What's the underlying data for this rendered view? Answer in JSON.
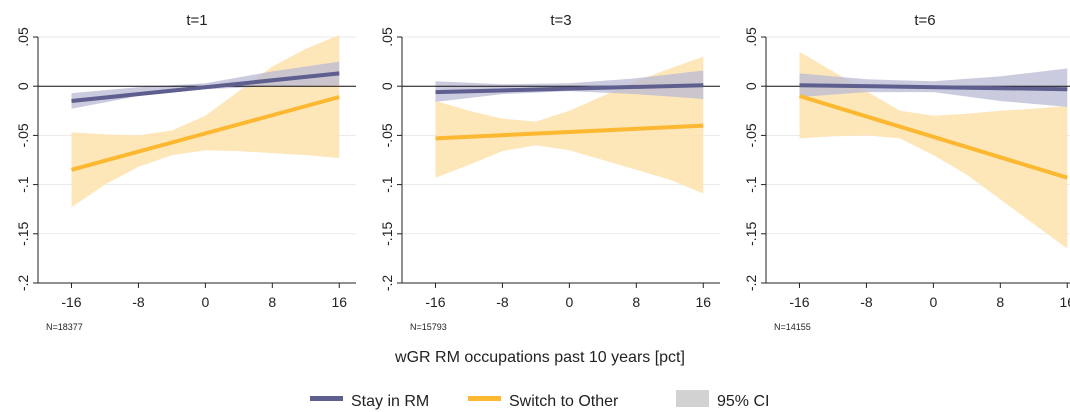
{
  "chart_data": {
    "type": "line",
    "xlabel": "wGR RM occupations past 10 years [pct]",
    "legend": {
      "position": "bottom",
      "entries": [
        {
          "label": "Stay in RM",
          "color": "#5e5f8e",
          "kind": "line"
        },
        {
          "label": "Switch to Other",
          "color": "#fbb830",
          "kind": "line"
        },
        {
          "label": "95% CI",
          "color": "#d2d2d2",
          "kind": "area"
        }
      ]
    },
    "colors": {
      "stay_line": "#5e5f8e",
      "stay_band": "#b9bad6",
      "switch_line": "#fbb830",
      "switch_band": "#fde3b0",
      "axis": "#222222"
    },
    "xlim": [
      -20,
      18
    ],
    "ylim": [
      -0.2,
      0.05
    ],
    "xticks": [
      -16,
      -8,
      0,
      8,
      16
    ],
    "yticks": [
      0.05,
      0,
      -0.05,
      -0.1,
      -0.15,
      -0.2
    ],
    "yticklabels": [
      ".05",
      "0",
      "-.05",
      "-.1",
      "-.15",
      "-.2"
    ],
    "zero_line": true,
    "grid": "horizontal",
    "panels": [
      {
        "title": "t=1",
        "n_label": "N=18377",
        "series": [
          {
            "key": "stay",
            "name": "Stay in RM",
            "x": [
              -16,
              16
            ],
            "y": [
              -0.015,
              0.013
            ],
            "ci": {
              "x": [
                -16,
                -8,
                0,
                8,
                16
              ],
              "upper": [
                -0.007,
                -0.001,
                0.003,
                0.015,
                0.025
              ],
              "lower": [
                -0.023,
                -0.01,
                -0.003,
                0.0,
                0.001
              ]
            }
          },
          {
            "key": "switch",
            "name": "Switch to Other",
            "x": [
              -16,
              16
            ],
            "y": [
              -0.085,
              -0.011
            ],
            "ci": {
              "x": [
                -16,
                -12,
                -8,
                -4,
                0,
                4,
                8,
                12,
                16
              ],
              "upper": [
                -0.047,
                -0.049,
                -0.05,
                -0.045,
                -0.03,
                -0.005,
                0.02,
                0.038,
                0.052
              ],
              "lower": [
                -0.123,
                -0.1,
                -0.082,
                -0.07,
                -0.065,
                -0.066,
                -0.068,
                -0.07,
                -0.073
              ]
            }
          }
        ]
      },
      {
        "title": "t=3",
        "n_label": "N=15793",
        "series": [
          {
            "key": "stay",
            "name": "Stay in RM",
            "x": [
              -16,
              16
            ],
            "y": [
              -0.006,
              0.001
            ],
            "ci": {
              "x": [
                -16,
                -8,
                0,
                8,
                16
              ],
              "upper": [
                0.005,
                0.002,
                0.003,
                0.008,
                0.016
              ],
              "lower": [
                -0.016,
                -0.008,
                -0.005,
                -0.008,
                -0.013
              ]
            }
          },
          {
            "key": "switch",
            "name": "Switch to Other",
            "x": [
              -16,
              16
            ],
            "y": [
              -0.053,
              -0.04
            ],
            "ci": {
              "x": [
                -16,
                -12,
                -8,
                -4,
                0,
                4,
                8,
                12,
                16
              ],
              "upper": [
                -0.015,
                -0.025,
                -0.033,
                -0.036,
                -0.025,
                -0.01,
                0.005,
                0.018,
                0.03
              ],
              "lower": [
                -0.093,
                -0.08,
                -0.066,
                -0.06,
                -0.065,
                -0.075,
                -0.085,
                -0.095,
                -0.109
              ]
            }
          }
        ]
      },
      {
        "title": "t=6",
        "n_label": "N=14155",
        "series": [
          {
            "key": "stay",
            "name": "Stay in RM",
            "x": [
              -16,
              16
            ],
            "y": [
              0.001,
              -0.003
            ],
            "ci": {
              "x": [
                -16,
                -8,
                0,
                8,
                16
              ],
              "upper": [
                0.013,
                0.007,
                0.005,
                0.01,
                0.018
              ],
              "lower": [
                -0.011,
                -0.006,
                -0.006,
                -0.015,
                -0.021
              ]
            }
          },
          {
            "key": "switch",
            "name": "Switch to Other",
            "x": [
              -16,
              16
            ],
            "y": [
              -0.01,
              -0.093
            ],
            "ci": {
              "x": [
                -16,
                -12,
                -8,
                -4,
                0,
                4,
                8,
                12,
                16
              ],
              "upper": [
                0.035,
                0.015,
                -0.005,
                -0.025,
                -0.03,
                -0.028,
                -0.025,
                -0.023,
                -0.02
              ],
              "lower": [
                -0.053,
                -0.051,
                -0.05,
                -0.053,
                -0.07,
                -0.09,
                -0.115,
                -0.14,
                -0.165
              ]
            }
          }
        ]
      }
    ]
  }
}
